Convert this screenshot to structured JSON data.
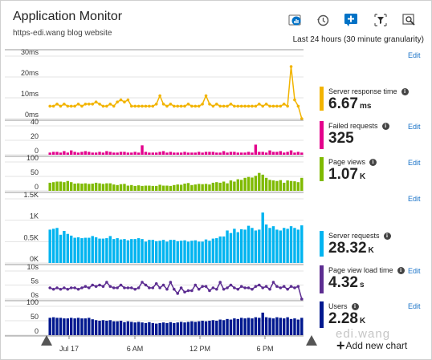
{
  "app": {
    "title": "Application Monitor",
    "subtitle": "https-edi.wang blog website",
    "time_range": "Last 24 hours (30 minute granularity)",
    "watermark": "edi.wang",
    "add_chart_label": "Add new chart"
  },
  "toolbar": {
    "icons": [
      "chart-settings-icon",
      "history-icon",
      "add-pin-icon",
      "filter-icon",
      "chart-zoom-icon"
    ]
  },
  "edit_label": "Edit",
  "x_axis": {
    "labels": [
      "Jul 17",
      "6 AM",
      "12 PM",
      "6 PM"
    ]
  },
  "panels": [
    {
      "name": "Server response time",
      "value": "6.67",
      "unit": "ms",
      "color": "#f2b400"
    },
    {
      "name": "Failed requests",
      "value": "325",
      "unit": "",
      "color": "#e3008c"
    },
    {
      "name": "Page views",
      "value": "1.07",
      "unit": "K",
      "color": "#7fba00"
    },
    {
      "name": "Server requests",
      "value": "28.32",
      "unit": "K",
      "color": "#00b4f0"
    },
    {
      "name": "Page view load time",
      "value": "4.32",
      "unit": "s",
      "color": "#5c2d91"
    },
    {
      "name": "Users",
      "value": "2.28",
      "unit": "K",
      "color": "#00188f"
    }
  ],
  "chart_data": [
    {
      "type": "line",
      "name": "Server response time",
      "color": "#f2b400",
      "y_ticks": [
        "30ms",
        "20ms",
        "10ms",
        "0ms"
      ],
      "ylim": [
        0,
        30
      ],
      "values": [
        6,
        6,
        7,
        6,
        7,
        6,
        6,
        6,
        7,
        6,
        7,
        7,
        7,
        8,
        7,
        6,
        6,
        7,
        6,
        8,
        9,
        8,
        9,
        6,
        6,
        6,
        6,
        6,
        6,
        6,
        7,
        11,
        7,
        6,
        7,
        6,
        6,
        6,
        6,
        7,
        6,
        6,
        6,
        7,
        11,
        7,
        6,
        7,
        6,
        6,
        6,
        7,
        6,
        6,
        6,
        6,
        6,
        6,
        6,
        7,
        6,
        7,
        6,
        6,
        6,
        6,
        7,
        6,
        25,
        9,
        6,
        0
      ]
    },
    {
      "type": "bar",
      "name": "Failed requests",
      "color": "#e3008c",
      "y_ticks": [
        "40",
        "20",
        "0"
      ],
      "ylim": [
        0,
        40
      ],
      "values": [
        3,
        4,
        4,
        3,
        5,
        3,
        6,
        4,
        3,
        4,
        5,
        4,
        3,
        3,
        4,
        3,
        5,
        4,
        3,
        3,
        4,
        4,
        3,
        3,
        4,
        3,
        13,
        4,
        3,
        3,
        3,
        4,
        5,
        3,
        4,
        3,
        3,
        3,
        4,
        3,
        3,
        3,
        4,
        3,
        4,
        4,
        4,
        3,
        3,
        5,
        3,
        4,
        4,
        3,
        3,
        3,
        4,
        3,
        14,
        4,
        4,
        3,
        6,
        4,
        4,
        5,
        3,
        4,
        6,
        3,
        4,
        3
      ]
    },
    {
      "type": "bar",
      "name": "Page views",
      "color": "#7fba00",
      "y_ticks": [
        "100",
        "50",
        "0"
      ],
      "ylim": [
        0,
        110
      ],
      "values": [
        28,
        30,
        32,
        32,
        30,
        34,
        30,
        25,
        26,
        25,
        26,
        24,
        25,
        28,
        26,
        24,
        26,
        26,
        22,
        20,
        23,
        24,
        18,
        20,
        17,
        19,
        17,
        18,
        18,
        17,
        17,
        21,
        18,
        18,
        17,
        20,
        22,
        21,
        25,
        27,
        20,
        22,
        24,
        23,
        24,
        22,
        28,
        30,
        28,
        32,
        26,
        36,
        32,
        40,
        38,
        45,
        48,
        46,
        52,
        62,
        56,
        45,
        38,
        36,
        34,
        37,
        28,
        36,
        34,
        33,
        30,
        45
      ]
    },
    {
      "type": "bar",
      "name": "Server requests",
      "color": "#00b4f0",
      "y_ticks": [
        "1.5K",
        "1K",
        "0.5K",
        "0K"
      ],
      "ylim": [
        0,
        1500
      ],
      "values": [
        780,
        800,
        820,
        660,
        750,
        680,
        640,
        590,
        600,
        580,
        590,
        590,
        630,
        600,
        570,
        570,
        580,
        630,
        560,
        580,
        550,
        560,
        530,
        560,
        560,
        580,
        560,
        500,
        540,
        540,
        510,
        520,
        540,
        500,
        540,
        540,
        510,
        520,
        530,
        500,
        520,
        530,
        500,
        500,
        550,
        520,
        570,
        580,
        620,
        620,
        760,
        700,
        800,
        720,
        790,
        780,
        870,
        820,
        760,
        780,
        1180,
        900,
        820,
        860,
        780,
        760,
        820,
        800,
        860,
        820,
        780,
        880
      ]
    },
    {
      "type": "line",
      "name": "Page view load time",
      "color": "#5c2d91",
      "y_ticks": [
        "10s",
        "5s",
        "0s"
      ],
      "ylim": [
        0,
        12
      ],
      "values": [
        4,
        3.5,
        4,
        3.5,
        4,
        3.5,
        4,
        4,
        3.5,
        4,
        4.5,
        4,
        5,
        4.5,
        5,
        4.5,
        6,
        4.5,
        4,
        4,
        5,
        4,
        4,
        4,
        3.5,
        4,
        6,
        5,
        4,
        4,
        5.5,
        4,
        5,
        3.5,
        6,
        3.5,
        2,
        4,
        2.5,
        3,
        3,
        5,
        3.5,
        4.5,
        4.5,
        3,
        4,
        3.5,
        6,
        3.5,
        4,
        5,
        4,
        3.5,
        4.5,
        4,
        4,
        3.5,
        4.5,
        5,
        4,
        4.5,
        3.5,
        6,
        4.5,
        4,
        4.5,
        3.5,
        4.5,
        4,
        4.5,
        0
      ]
    },
    {
      "type": "bar",
      "name": "Users",
      "color": "#00188f",
      "y_ticks": [
        "100",
        "50",
        "0"
      ],
      "ylim": [
        0,
        110
      ],
      "values": [
        60,
        62,
        60,
        60,
        58,
        58,
        60,
        58,
        60,
        58,
        58,
        60,
        55,
        52,
        50,
        52,
        50,
        52,
        48,
        48,
        50,
        45,
        48,
        46,
        44,
        46,
        44,
        42,
        45,
        42,
        40,
        42,
        44,
        42,
        45,
        42,
        44,
        46,
        44,
        46,
        48,
        46,
        48,
        50,
        48,
        50,
        52,
        50,
        54,
        52,
        56,
        54,
        58,
        56,
        60,
        58,
        60,
        58,
        62,
        60,
        78,
        62,
        60,
        58,
        62,
        60,
        58,
        62,
        56,
        58,
        54,
        60
      ]
    }
  ]
}
